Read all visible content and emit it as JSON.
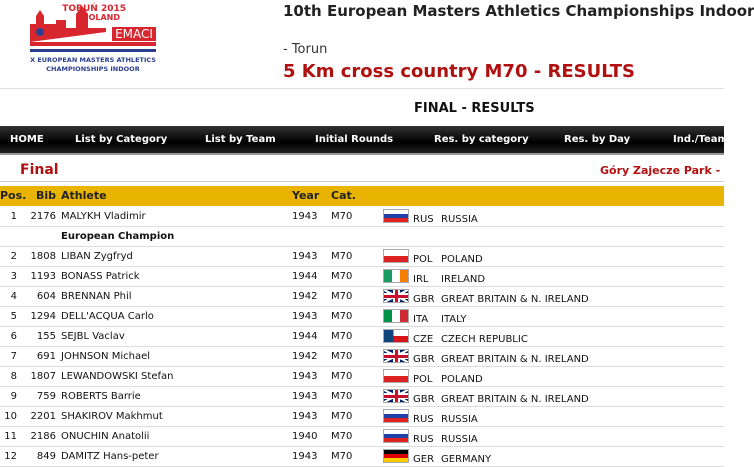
{
  "logo": {
    "year": "TORUŃ 2015",
    "country": "POLAND",
    "acronym": "EMACI",
    "line1": "X EUROPEAN MASTERS ATHLETICS",
    "line2": "CHAMPIONSHIPS INDOOR"
  },
  "header": {
    "title": "10th European Masters Athletics Championships Indoor",
    "city": "- Torun",
    "event": "5 Km cross country M70 - RESULTS",
    "phase": "FINAL - RESULTS"
  },
  "nav": [
    "HOME",
    "List by Category",
    "List by Team",
    "Initial Rounds",
    "Res. by category",
    "Res. by Day",
    "Ind./Team"
  ],
  "section": {
    "title": "Final",
    "venue": "Góry Zajecze Park -"
  },
  "table": {
    "headers": [
      "Pos.",
      "Bib",
      "Athlete",
      "Year",
      "Cat."
    ],
    "rows": [
      {
        "pos": 1,
        "bib": 2176,
        "athlete": "MALYKH Vladimir",
        "year": 1943,
        "cat": "M70",
        "code": "RUS",
        "country": "RUSSIA",
        "note": "European Champion"
      },
      {
        "pos": 2,
        "bib": 1808,
        "athlete": "LIBAN Zygfryd",
        "year": 1943,
        "cat": "M70",
        "code": "POL",
        "country": "POLAND"
      },
      {
        "pos": 3,
        "bib": 1193,
        "athlete": "BONASS Patrick",
        "year": 1944,
        "cat": "M70",
        "code": "IRL",
        "country": "IRELAND"
      },
      {
        "pos": 4,
        "bib": 604,
        "athlete": "BRENNAN Phil",
        "year": 1942,
        "cat": "M70",
        "code": "GBR",
        "country": "GREAT BRITAIN & N. IRELAND"
      },
      {
        "pos": 5,
        "bib": 1294,
        "athlete": "DELL'ACQUA Carlo",
        "year": 1943,
        "cat": "M70",
        "code": "ITA",
        "country": "ITALY"
      },
      {
        "pos": 6,
        "bib": 155,
        "athlete": "SEJBL Vaclav",
        "year": 1944,
        "cat": "M70",
        "code": "CZE",
        "country": "CZECH REPUBLIC"
      },
      {
        "pos": 7,
        "bib": 691,
        "athlete": "JOHNSON Michael",
        "year": 1942,
        "cat": "M70",
        "code": "GBR",
        "country": "GREAT BRITAIN & N. IRELAND"
      },
      {
        "pos": 8,
        "bib": 1807,
        "athlete": "LEWANDOWSKI Stefan",
        "year": 1943,
        "cat": "M70",
        "code": "POL",
        "country": "POLAND"
      },
      {
        "pos": 9,
        "bib": 759,
        "athlete": "ROBERTS Barrie",
        "year": 1943,
        "cat": "M70",
        "code": "GBR",
        "country": "GREAT BRITAIN & N. IRELAND"
      },
      {
        "pos": 10,
        "bib": 2201,
        "athlete": "SHAKIROV Makhmut",
        "year": 1943,
        "cat": "M70",
        "code": "RUS",
        "country": "RUSSIA"
      },
      {
        "pos": 11,
        "bib": 2186,
        "athlete": "ONUCHIN Anatolii",
        "year": 1940,
        "cat": "M70",
        "code": "RUS",
        "country": "RUSSIA"
      },
      {
        "pos": 12,
        "bib": 849,
        "athlete": "DAMITZ Hans-peter",
        "year": 1943,
        "cat": "M70",
        "code": "GER",
        "country": "GERMANY"
      }
    ]
  }
}
